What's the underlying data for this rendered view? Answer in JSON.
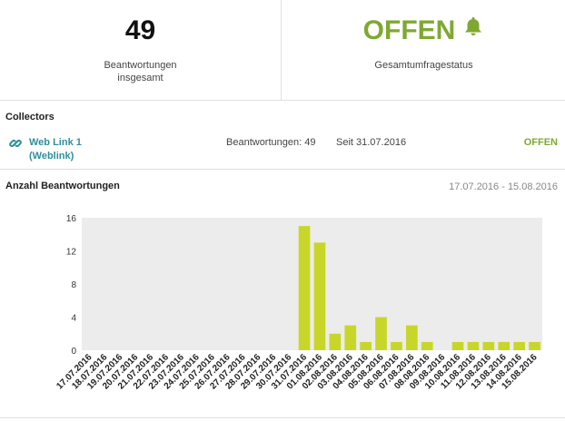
{
  "summary": {
    "total_responses": "49",
    "total_label_line1": "Beantwortungen",
    "total_label_line2": "insgesamt",
    "status": "OFFEN",
    "status_label": "Gesamtumfragestatus",
    "status_icon": "bell-icon"
  },
  "collectors": {
    "title": "Collectors",
    "items": [
      {
        "icon": "link-icon",
        "name_line1": "Web Link 1",
        "name_line2": "(Weblink)",
        "responses": "Beantwortungen: 49",
        "since": "Seit 31.07.2016",
        "status": "OFFEN"
      }
    ]
  },
  "chart_section": {
    "title": "Anzahl Beantwortungen",
    "date_range": "17.07.2016 - 15.08.2016"
  },
  "colors": {
    "accent_green": "#7fa832",
    "bar": "#c8d62a",
    "plot_bg": "#ececec",
    "link_teal": "#2f8f99"
  },
  "chart_data": {
    "type": "bar",
    "title": "",
    "xlabel": "",
    "ylabel": "",
    "ylim": [
      0,
      16
    ],
    "yticks": [
      0,
      4,
      8,
      12,
      16
    ],
    "grid": false,
    "categories": [
      "17.07.2016",
      "18.07.2016",
      "19.07.2016",
      "20.07.2016",
      "21.07.2016",
      "22.07.2016",
      "23.07.2016",
      "24.07.2016",
      "25.07.2016",
      "26.07.2016",
      "27.07.2016",
      "28.07.2016",
      "29.07.2016",
      "30.07.2016",
      "31.07.2016",
      "01.08.2016",
      "02.08.2016",
      "03.08.2016",
      "04.08.2016",
      "05.08.2016",
      "06.08.2016",
      "07.08.2016",
      "08.08.2016",
      "09.08.2016",
      "10.08.2016",
      "11.08.2016",
      "12.08.2016",
      "13.08.2016",
      "14.08.2016",
      "15.08.2016"
    ],
    "values": [
      0,
      0,
      0,
      0,
      0,
      0,
      0,
      0,
      0,
      0,
      0,
      0,
      0,
      0,
      15,
      13,
      2,
      3,
      1,
      4,
      1,
      3,
      1,
      0,
      1,
      1,
      1,
      1,
      1,
      1
    ]
  }
}
